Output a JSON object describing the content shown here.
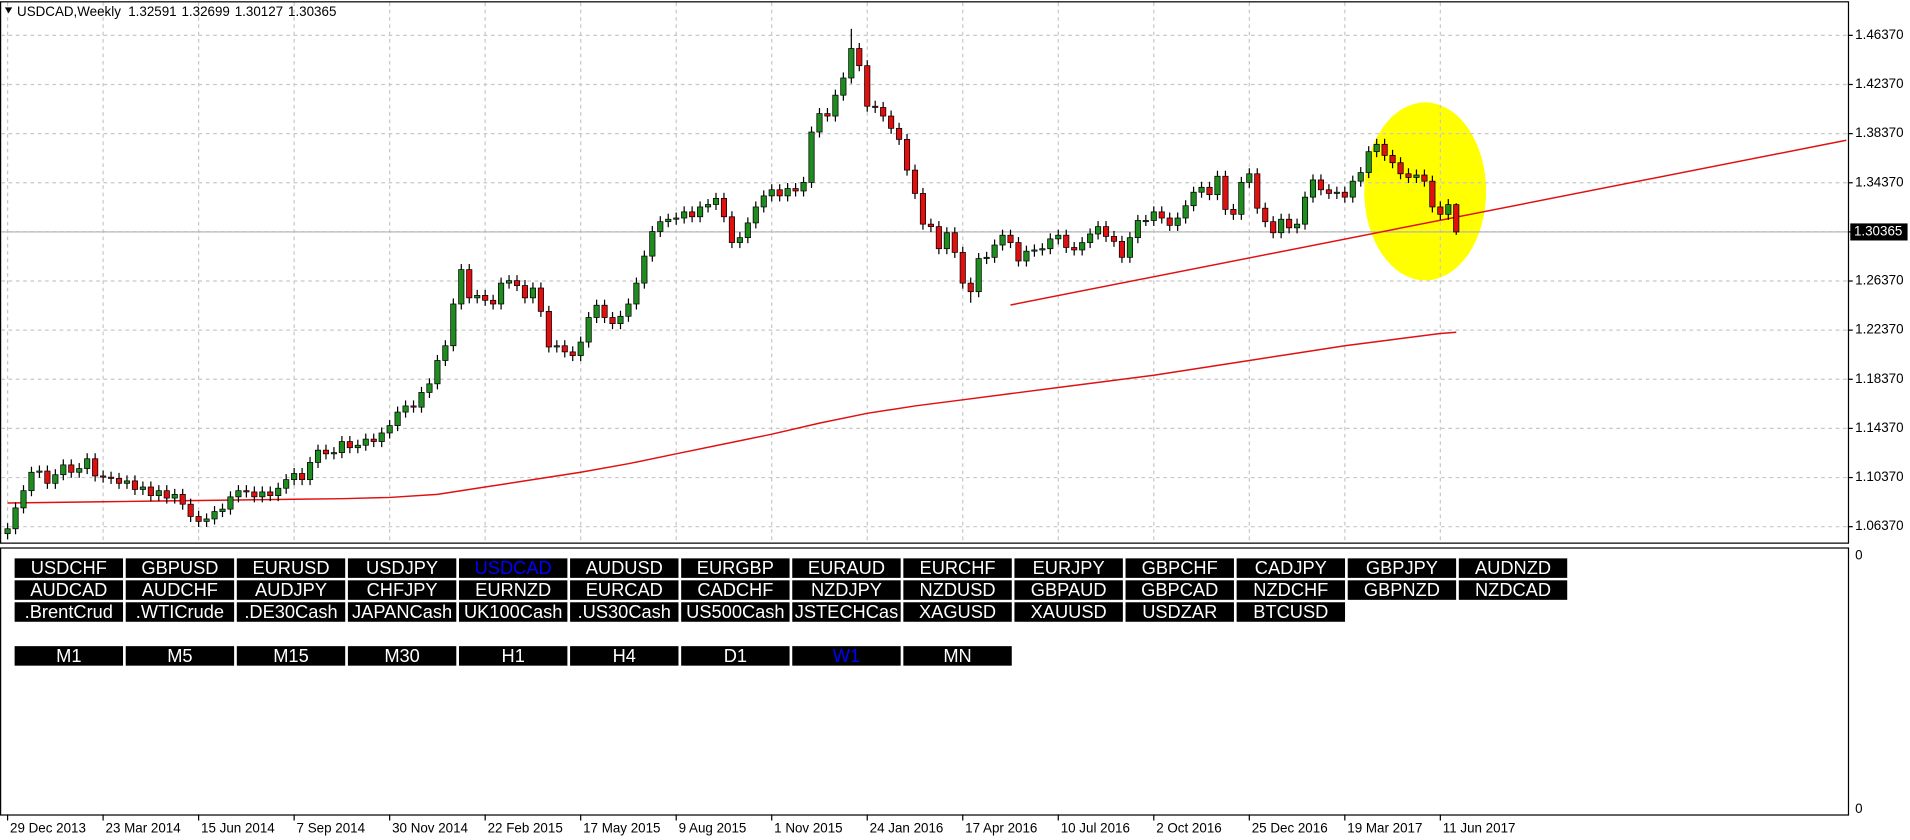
{
  "chart_data": {
    "type": "candlestick",
    "title": "USDCAD,Weekly",
    "xlim": [
      -0.8,
      231.2
    ],
    "ylim": [
      1.0508,
      1.4905
    ],
    "yticks": [
      {
        "value": 1.0637,
        "label": "1.06370"
      },
      {
        "value": 1.1037,
        "label": "1.10370"
      },
      {
        "value": 1.1437,
        "label": "1.14370"
      },
      {
        "value": 1.1837,
        "label": "1.18370"
      },
      {
        "value": 1.2237,
        "label": "1.22370"
      },
      {
        "value": 1.2637,
        "label": "1.26370"
      },
      {
        "value": 1.3037,
        "label": "1.30370"
      },
      {
        "value": 1.3437,
        "label": "1.34370"
      },
      {
        "value": 1.3837,
        "label": "1.38370"
      },
      {
        "value": 1.4237,
        "label": "1.42370"
      },
      {
        "value": 1.4637,
        "label": "1.46370"
      }
    ],
    "xticks": [
      {
        "value": 0,
        "label": "29 Dec 2013"
      },
      {
        "value": 12,
        "label": "23 Mar 2014"
      },
      {
        "value": 24,
        "label": "15 Jun 2014"
      },
      {
        "value": 36,
        "label": "7 Sep 2014"
      },
      {
        "value": 48,
        "label": "30 Nov 2014"
      },
      {
        "value": 60,
        "label": "22 Feb 2015"
      },
      {
        "value": 72,
        "label": "17 May 2015"
      },
      {
        "value": 84,
        "label": "9 Aug 2015"
      },
      {
        "value": 96,
        "label": "1 Nov 2015"
      },
      {
        "value": 108,
        "label": "24 Jan 2016"
      },
      {
        "value": 120,
        "label": "17 Apr 2016"
      },
      {
        "value": 132,
        "label": "10 Jul 2016"
      },
      {
        "value": 144,
        "label": "2 Oct 2016"
      },
      {
        "value": 156,
        "label": "25 Dec 2016"
      },
      {
        "value": 168,
        "label": "19 Mar 2017"
      },
      {
        "value": 180,
        "label": "11 Jun 2017"
      }
    ],
    "grid": true,
    "up_color": "#1e8c1e",
    "down_color": "#e01010",
    "candles": [
      [
        1.058,
        1.0665,
        1.0535,
        1.062
      ],
      [
        1.062,
        1.0835,
        1.0575,
        1.079
      ],
      [
        1.079,
        1.0975,
        1.0745,
        1.093
      ],
      [
        1.093,
        1.1125,
        1.0885,
        1.108
      ],
      [
        1.108,
        1.1135,
        1.1035,
        1.109
      ],
      [
        1.109,
        1.1135,
        1.0945,
        1.099
      ],
      [
        1.099,
        1.1105,
        1.0945,
        1.106
      ],
      [
        1.106,
        1.1185,
        1.1015,
        1.114
      ],
      [
        1.114,
        1.1185,
        1.1035,
        1.108
      ],
      [
        1.108,
        1.1155,
        1.1035,
        1.111
      ],
      [
        1.111,
        1.1235,
        1.1065,
        1.119
      ],
      [
        1.119,
        1.1235,
        1.1005,
        1.105
      ],
      [
        1.105,
        1.1095,
        1.0995,
        1.104
      ],
      [
        1.104,
        1.1085,
        1.0985,
        1.103
      ],
      [
        1.103,
        1.1075,
        1.0945,
        1.099
      ],
      [
        1.099,
        1.1055,
        1.0945,
        1.101
      ],
      [
        1.101,
        1.1055,
        1.0895,
        1.094
      ],
      [
        1.094,
        1.1005,
        1.0895,
        1.096
      ],
      [
        1.096,
        1.1005,
        1.0845,
        1.089
      ],
      [
        1.089,
        1.0975,
        1.0845,
        1.093
      ],
      [
        1.093,
        1.0975,
        1.0825,
        1.087
      ],
      [
        1.087,
        1.0945,
        1.0825,
        1.09
      ],
      [
        1.09,
        1.0945,
        1.0775,
        1.082
      ],
      [
        1.082,
        1.0865,
        1.0675,
        1.072
      ],
      [
        1.072,
        1.0765,
        1.0635,
        1.068
      ],
      [
        1.068,
        1.0745,
        1.0635,
        1.07
      ],
      [
        1.07,
        1.0805,
        1.0655,
        1.076
      ],
      [
        1.076,
        1.0825,
        1.0715,
        1.078
      ],
      [
        1.078,
        1.0925,
        1.0735,
        1.088
      ],
      [
        1.088,
        1.0975,
        1.0835,
        1.093
      ],
      [
        1.093,
        1.0975,
        1.0875,
        1.092
      ],
      [
        1.092,
        1.0965,
        1.0835,
        1.088
      ],
      [
        1.088,
        1.0965,
        1.0835,
        1.092
      ],
      [
        1.092,
        1.0965,
        1.0845,
        1.089
      ],
      [
        1.089,
        1.0995,
        1.0845,
        1.095
      ],
      [
        1.095,
        1.1065,
        1.0905,
        1.102
      ],
      [
        1.102,
        1.1115,
        1.0975,
        1.107
      ],
      [
        1.107,
        1.1115,
        1.0975,
        1.102
      ],
      [
        1.102,
        1.1205,
        1.0975,
        1.116
      ],
      [
        1.116,
        1.1305,
        1.1115,
        1.126
      ],
      [
        1.126,
        1.1305,
        1.1185,
        1.123
      ],
      [
        1.123,
        1.1285,
        1.1185,
        1.124
      ],
      [
        1.124,
        1.1375,
        1.1195,
        1.133
      ],
      [
        1.133,
        1.1375,
        1.1235,
        1.128
      ],
      [
        1.128,
        1.1345,
        1.1235,
        1.13
      ],
      [
        1.13,
        1.1395,
        1.1255,
        1.135
      ],
      [
        1.135,
        1.1395,
        1.1285,
        1.133
      ],
      [
        1.133,
        1.1445,
        1.1285,
        1.14
      ],
      [
        1.14,
        1.1505,
        1.1355,
        1.146
      ],
      [
        1.146,
        1.1615,
        1.1415,
        1.157
      ],
      [
        1.157,
        1.1665,
        1.1525,
        1.162
      ],
      [
        1.162,
        1.1665,
        1.1565,
        1.161
      ],
      [
        1.161,
        1.1775,
        1.1565,
        1.173
      ],
      [
        1.173,
        1.1845,
        1.1685,
        1.18
      ],
      [
        1.18,
        1.2035,
        1.1755,
        1.199
      ],
      [
        1.199,
        1.2155,
        1.1945,
        1.211
      ],
      [
        1.211,
        1.2495,
        1.2065,
        1.245
      ],
      [
        1.245,
        1.2775,
        1.2405,
        1.273
      ],
      [
        1.273,
        1.2775,
        1.2455,
        1.25
      ],
      [
        1.25,
        1.2565,
        1.2455,
        1.252
      ],
      [
        1.252,
        1.2565,
        1.2435,
        1.248
      ],
      [
        1.248,
        1.2525,
        1.2405,
        1.245
      ],
      [
        1.245,
        1.2665,
        1.2405,
        1.262
      ],
      [
        1.262,
        1.2685,
        1.2575,
        1.264
      ],
      [
        1.264,
        1.2685,
        1.2555,
        1.26
      ],
      [
        1.26,
        1.2645,
        1.2455,
        1.25
      ],
      [
        1.25,
        1.2625,
        1.2455,
        1.258
      ],
      [
        1.258,
        1.2625,
        1.2345,
        1.239
      ],
      [
        1.239,
        1.2435,
        1.2055,
        1.21
      ],
      [
        1.21,
        1.2155,
        1.2055,
        1.211
      ],
      [
        1.211,
        1.2155,
        1.2015,
        1.206
      ],
      [
        1.206,
        1.2105,
        1.1985,
        1.203
      ],
      [
        1.203,
        1.2185,
        1.1985,
        1.214
      ],
      [
        1.214,
        1.2385,
        1.2095,
        1.234
      ],
      [
        1.234,
        1.2485,
        1.2295,
        1.244
      ],
      [
        1.244,
        1.2485,
        1.2295,
        1.234
      ],
      [
        1.234,
        1.2385,
        1.2245,
        1.229
      ],
      [
        1.229,
        1.2395,
        1.2245,
        1.235
      ],
      [
        1.235,
        1.2495,
        1.2305,
        1.245
      ],
      [
        1.245,
        1.2665,
        1.2405,
        1.262
      ],
      [
        1.262,
        1.2885,
        1.2575,
        1.284
      ],
      [
        1.284,
        1.3085,
        1.2795,
        1.304
      ],
      [
        1.304,
        1.3165,
        1.2995,
        1.312
      ],
      [
        1.312,
        1.3185,
        1.3075,
        1.314
      ],
      [
        1.314,
        1.3195,
        1.3095,
        1.315
      ],
      [
        1.315,
        1.3245,
        1.3105,
        1.32
      ],
      [
        1.32,
        1.3245,
        1.3115,
        1.316
      ],
      [
        1.316,
        1.3285,
        1.3115,
        1.324
      ],
      [
        1.324,
        1.3305,
        1.3195,
        1.326
      ],
      [
        1.326,
        1.3355,
        1.3215,
        1.331
      ],
      [
        1.331,
        1.3355,
        1.3115,
        1.316
      ],
      [
        1.316,
        1.3205,
        1.2905,
        1.295
      ],
      [
        1.295,
        1.3035,
        1.2905,
        1.299
      ],
      [
        1.299,
        1.3155,
        1.2945,
        1.311
      ],
      [
        1.311,
        1.3285,
        1.3065,
        1.324
      ],
      [
        1.324,
        1.3375,
        1.3195,
        1.333
      ],
      [
        1.333,
        1.3425,
        1.3285,
        1.338
      ],
      [
        1.338,
        1.3425,
        1.3285,
        1.333
      ],
      [
        1.333,
        1.3435,
        1.3285,
        1.339
      ],
      [
        1.339,
        1.3435,
        1.3325,
        1.337
      ],
      [
        1.337,
        1.3485,
        1.3325,
        1.344
      ],
      [
        1.344,
        1.3895,
        1.3395,
        1.385
      ],
      [
        1.385,
        1.4045,
        1.3805,
        1.4
      ],
      [
        1.4,
        1.4045,
        1.3935,
        1.398
      ],
      [
        1.398,
        1.4195,
        1.3935,
        1.415
      ],
      [
        1.415,
        1.4335,
        1.4105,
        1.429
      ],
      [
        1.429,
        1.469,
        1.4245,
        1.453
      ],
      [
        1.453,
        1.4575,
        1.4345,
        1.439
      ],
      [
        1.439,
        1.4435,
        1.4015,
        1.406
      ],
      [
        1.406,
        1.4105,
        1.4005,
        1.405
      ],
      [
        1.405,
        1.4095,
        1.3935,
        1.398
      ],
      [
        1.398,
        1.4025,
        1.3835,
        1.388
      ],
      [
        1.388,
        1.3925,
        1.3745,
        1.379
      ],
      [
        1.379,
        1.3835,
        1.3495,
        1.354
      ],
      [
        1.354,
        1.3585,
        1.3305,
        1.335
      ],
      [
        1.335,
        1.3395,
        1.3055,
        1.31
      ],
      [
        1.31,
        1.3145,
        1.3035,
        1.308
      ],
      [
        1.308,
        1.3125,
        1.2855,
        1.29
      ],
      [
        1.29,
        1.3075,
        1.2855,
        1.303
      ],
      [
        1.303,
        1.3075,
        1.2825,
        1.287
      ],
      [
        1.287,
        1.2915,
        1.2575,
        1.262
      ],
      [
        1.262,
        1.2665,
        1.246,
        1.255
      ],
      [
        1.255,
        1.2865,
        1.2505,
        1.282
      ],
      [
        1.282,
        1.2875,
        1.2775,
        1.283
      ],
      [
        1.283,
        1.2975,
        1.2785,
        1.293
      ],
      [
        1.293,
        1.3055,
        1.2885,
        1.301
      ],
      [
        1.301,
        1.3055,
        1.2905,
        1.295
      ],
      [
        1.295,
        1.2995,
        1.2755,
        1.28
      ],
      [
        1.28,
        1.2925,
        1.2755,
        1.288
      ],
      [
        1.288,
        1.2935,
        1.2835,
        1.289
      ],
      [
        1.289,
        1.2945,
        1.2845,
        1.29
      ],
      [
        1.29,
        1.3025,
        1.2855,
        1.298
      ],
      [
        1.298,
        1.3055,
        1.2935,
        1.301
      ],
      [
        1.301,
        1.3055,
        1.2865,
        1.291
      ],
      [
        1.291,
        1.2955,
        1.2845,
        1.289
      ],
      [
        1.289,
        1.2995,
        1.2845,
        1.295
      ],
      [
        1.295,
        1.3065,
        1.2905,
        1.302
      ],
      [
        1.302,
        1.3125,
        1.2975,
        1.308
      ],
      [
        1.308,
        1.3125,
        1.2955,
        1.3
      ],
      [
        1.3,
        1.3045,
        1.2915,
        1.296
      ],
      [
        1.296,
        1.3005,
        1.2785,
        1.283
      ],
      [
        1.283,
        1.3035,
        1.2785,
        1.299
      ],
      [
        1.299,
        1.3175,
        1.2945,
        1.313
      ],
      [
        1.313,
        1.3175,
        1.3085,
        1.313
      ],
      [
        1.313,
        1.3245,
        1.3085,
        1.32
      ],
      [
        1.32,
        1.3245,
        1.3105,
        1.315
      ],
      [
        1.315,
        1.3195,
        1.3045,
        1.309
      ],
      [
        1.309,
        1.3195,
        1.3045,
        1.315
      ],
      [
        1.315,
        1.3295,
        1.3105,
        1.325
      ],
      [
        1.325,
        1.3405,
        1.3205,
        1.336
      ],
      [
        1.336,
        1.3445,
        1.3315,
        1.34
      ],
      [
        1.34,
        1.3445,
        1.3295,
        1.334
      ],
      [
        1.334,
        1.3535,
        1.3295,
        1.349
      ],
      [
        1.349,
        1.3535,
        1.3175,
        1.322
      ],
      [
        1.322,
        1.3265,
        1.3135,
        1.318
      ],
      [
        1.318,
        1.3485,
        1.3135,
        1.344
      ],
      [
        1.344,
        1.3555,
        1.3395,
        1.351
      ],
      [
        1.351,
        1.3555,
        1.3185,
        1.323
      ],
      [
        1.323,
        1.3275,
        1.3075,
        1.312
      ],
      [
        1.312,
        1.3165,
        1.2985,
        1.303
      ],
      [
        1.303,
        1.3185,
        1.2985,
        1.314
      ],
      [
        1.314,
        1.3185,
        1.3025,
        1.307
      ],
      [
        1.307,
        1.3145,
        1.3025,
        1.31
      ],
      [
        1.31,
        1.3365,
        1.3055,
        1.332
      ],
      [
        1.332,
        1.3505,
        1.3275,
        1.346
      ],
      [
        1.346,
        1.3505,
        1.3335,
        1.338
      ],
      [
        1.338,
        1.3425,
        1.3305,
        1.335
      ],
      [
        1.335,
        1.3405,
        1.3305,
        1.336
      ],
      [
        1.336,
        1.3405,
        1.3275,
        1.332
      ],
      [
        1.332,
        1.3495,
        1.3275,
        1.345
      ],
      [
        1.345,
        1.3565,
        1.3405,
        1.352
      ],
      [
        1.352,
        1.3735,
        1.3475,
        1.369
      ],
      [
        1.369,
        1.3795,
        1.3645,
        1.375
      ],
      [
        1.375,
        1.3795,
        1.3615,
        1.366
      ],
      [
        1.366,
        1.3705,
        1.3555,
        1.36
      ],
      [
        1.36,
        1.3645,
        1.3465,
        1.351
      ],
      [
        1.351,
        1.3555,
        1.3435,
        1.348
      ],
      [
        1.348,
        1.3545,
        1.3435,
        1.35
      ],
      [
        1.35,
        1.3545,
        1.3405,
        1.345
      ],
      [
        1.345,
        1.3495,
        1.3195,
        1.324
      ],
      [
        1.324,
        1.3285,
        1.3135,
        1.318
      ],
      [
        1.318,
        1.3304,
        1.3135,
        1.3259
      ],
      [
        1.32591,
        1.32699,
        1.30127,
        1.30365
      ]
    ],
    "moving_average": {
      "color": "#e01010",
      "x": [
        0,
        6,
        12,
        18,
        24,
        30,
        36,
        42,
        48,
        54,
        60,
        66,
        72,
        78,
        84,
        90,
        96,
        102,
        108,
        114,
        120,
        126,
        132,
        138,
        144,
        150,
        156,
        162,
        168,
        174,
        180,
        182
      ],
      "values": [
        1.083,
        1.0835,
        1.084,
        1.0845,
        1.085,
        1.0855,
        1.086,
        1.0865,
        1.0875,
        1.09,
        1.096,
        1.102,
        1.108,
        1.115,
        1.123,
        1.131,
        1.139,
        1.148,
        1.156,
        1.162,
        1.167,
        1.172,
        1.177,
        1.182,
        1.187,
        1.193,
        1.199,
        1.205,
        1.211,
        1.216,
        1.221,
        1.222
      ]
    },
    "trendline": {
      "color": "#e01010",
      "x": [
        126,
        231
      ],
      "values": [
        1.2442,
        1.3783
      ]
    },
    "subwindow": {
      "ylabels": [
        0,
        0
      ]
    }
  },
  "panel": {
    "symbols": [
      [
        "USDCHF",
        "GBPUSD",
        "EURUSD",
        "USDJPY",
        "USDCAD",
        "AUDUSD",
        "EURGBP",
        "EURAUD",
        "EURCHF",
        "EURJPY",
        "GBPCHF",
        "CADJPY",
        "GBPJPY",
        "AUDNZD"
      ],
      [
        "AUDCAD",
        "AUDCHF",
        "AUDJPY",
        "CHFJPY",
        "EURNZD",
        "EURCAD",
        "CADCHF",
        "NZDJPY",
        "NZDUSD",
        "GBPAUD",
        "GBPCAD",
        "NZDCHF",
        "GBPNZD",
        "NZDCAD"
      ],
      [
        ".BrentCrud",
        ".WTICrude",
        ".DE30Cash",
        "JAPANCash",
        "UK100Cash",
        ".US30Cash",
        "US500Cash",
        "JSTECHCas",
        "XAGUSD",
        "XAUUSD",
        "USDZAR",
        "BTCUSD"
      ]
    ],
    "active_symbol": [
      0,
      4
    ],
    "timeframes": [
      "M1",
      "M5",
      "M15",
      "M30",
      "H1",
      "H4",
      "D1",
      "W1",
      "MN"
    ],
    "active_timeframe": 7
  }
}
